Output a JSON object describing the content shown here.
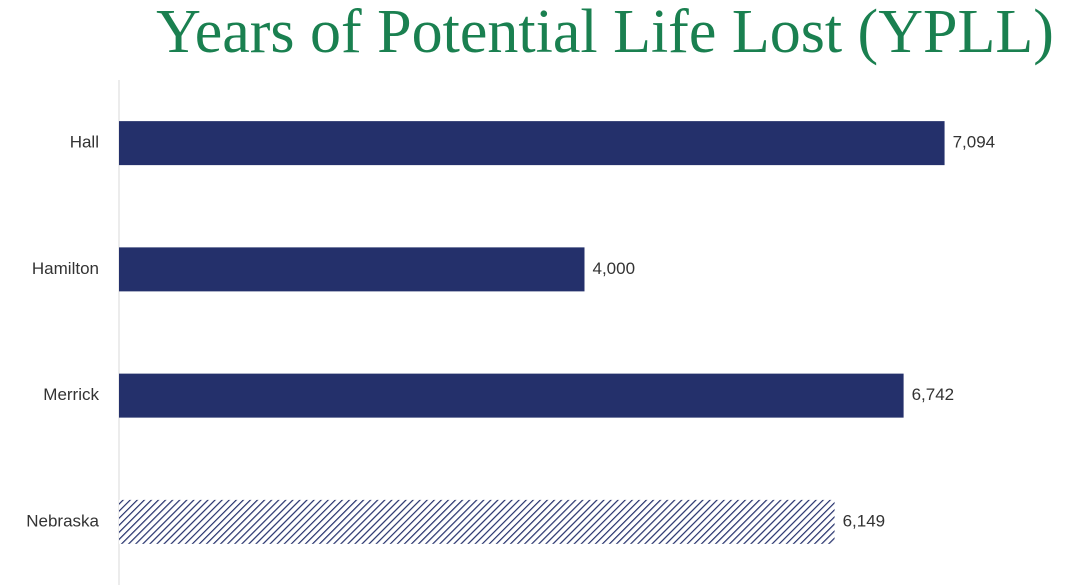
{
  "chart_data": {
    "type": "bar",
    "orientation": "horizontal",
    "title": "Years of Potential Life Lost (YPLL)",
    "categories": [
      "Hall",
      "Hamilton",
      "Merrick",
      "Nebraska"
    ],
    "values": [
      7094,
      4000,
      6742,
      6149
    ],
    "value_labels": [
      "7,094",
      "4,000",
      "6,742",
      "6,149"
    ],
    "color": "#24306b",
    "hatched": [
      false,
      false,
      false,
      true
    ],
    "xlim": [
      0,
      8000
    ]
  }
}
